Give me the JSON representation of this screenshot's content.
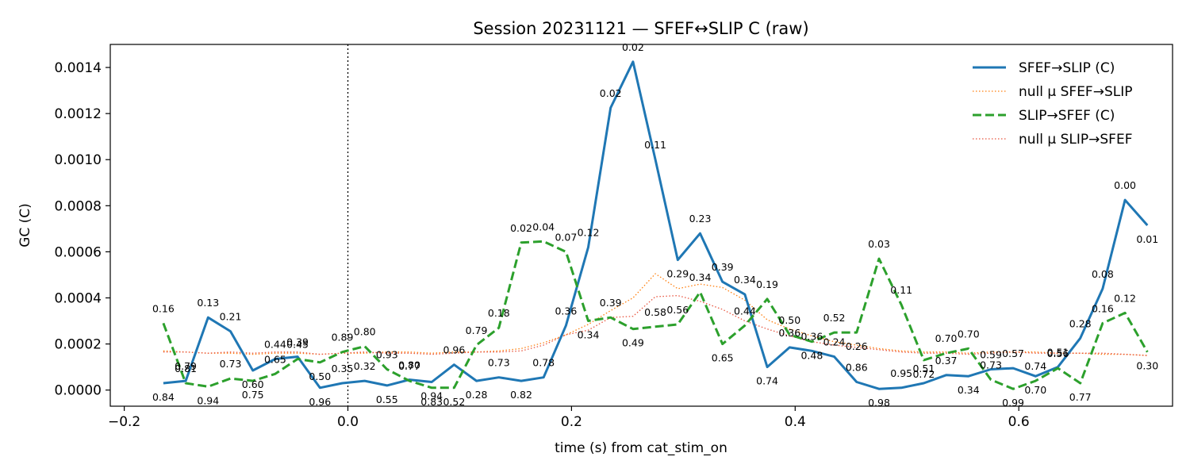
{
  "chart_data": {
    "type": "line",
    "title": "Session 20231121 — SFEF↔SLIP C (raw)",
    "xlabel": "time (s) from cat_stim_on",
    "ylabel": "GC (C)",
    "xlim": [
      -0.2125,
      0.7375
    ],
    "ylim": [
      -7e-05,
      0.0015
    ],
    "x_ticks": [
      -0.2,
      0.0,
      0.2,
      0.4,
      0.6
    ],
    "x_tick_labels": [
      "−0.2",
      "0.0",
      "0.2",
      "0.4",
      "0.6"
    ],
    "y_ticks": [
      0.0,
      0.0002,
      0.0004,
      0.0006,
      0.0008,
      0.001,
      0.0012,
      0.0014
    ],
    "y_tick_labels": [
      "0.0000",
      "0.0002",
      "0.0004",
      "0.0006",
      "0.0008",
      "0.0010",
      "0.0012",
      "0.0014"
    ],
    "grid": false,
    "legend_position": "top-right",
    "vline_x": 0.0,
    "x": [
      -0.165,
      -0.145,
      -0.125,
      -0.105,
      -0.085,
      -0.065,
      -0.045,
      -0.025,
      -0.005,
      0.015,
      0.035,
      0.055,
      0.075,
      0.095,
      0.115,
      0.135,
      0.155,
      0.175,
      0.195,
      0.215,
      0.235,
      0.255,
      0.275,
      0.295,
      0.315,
      0.335,
      0.355,
      0.375,
      0.395,
      0.415,
      0.435,
      0.455,
      0.475,
      0.495,
      0.515,
      0.535,
      0.555,
      0.575,
      0.595,
      0.615,
      0.635,
      0.655,
      0.675,
      0.695,
      0.715
    ],
    "series": [
      {
        "name": "SFEF→SLIP (C)",
        "color": "#1f77b4",
        "style": "solid",
        "values": [
          3e-05,
          4e-05,
          0.000315,
          0.000255,
          8.5e-05,
          0.000135,
          0.000145,
          1e-05,
          3e-05,
          4e-05,
          2e-05,
          4.5e-05,
          3.5e-05,
          0.00011,
          4e-05,
          5.5e-05,
          4e-05,
          5.5e-05,
          0.00028,
          0.00062,
          0.001225,
          0.001425,
          0.001,
          0.000565,
          0.00068,
          0.00047,
          0.000415,
          0.0001,
          0.000185,
          0.00017,
          0.000145,
          3.5e-05,
          5e-06,
          1e-05,
          3e-05,
          6.5e-05,
          6e-05,
          9e-05,
          9.5e-05,
          6e-05,
          0.0001,
          0.000225,
          0.00044,
          0.000825,
          0.000715
        ],
        "labels": [
          "0.84",
          "0.79",
          "0.13",
          "0.21",
          "0.60",
          "0.44",
          "0.39",
          "0.96",
          "0.35",
          "0.32",
          "0.55",
          "0.80",
          "0.94",
          "0.96",
          "0.28",
          "0.73",
          "0.82",
          "0.78",
          "0.36",
          "0.12",
          "0.02",
          "0.02",
          "0.11",
          "0.29",
          "0.23",
          "0.39",
          "0.34",
          "0.74",
          "0.36",
          "0.36",
          "0.24",
          "0.86",
          "0.98",
          "0.95",
          "0.51",
          "0.37",
          "0.34",
          "0.59",
          "0.57",
          "0.70",
          "0.51",
          "0.28",
          "0.08",
          "0.00",
          "0.01"
        ]
      },
      {
        "name": "null μ SFEF→SLIP",
        "color": "#ff7f0e",
        "style": "dotted",
        "values": [
          0.00017,
          0.000165,
          0.00016,
          0.00016,
          0.000155,
          0.00016,
          0.00016,
          0.000155,
          0.00016,
          0.00016,
          0.000165,
          0.000165,
          0.00016,
          0.000165,
          0.000165,
          0.00017,
          0.00018,
          0.000205,
          0.00024,
          0.000285,
          0.000345,
          0.0004,
          0.000505,
          0.00044,
          0.00046,
          0.000445,
          0.00039,
          0.000305,
          0.000265,
          0.000235,
          0.00021,
          0.000195,
          0.00018,
          0.00017,
          0.000165,
          0.000165,
          0.00016,
          0.000165,
          0.000165,
          0.000165,
          0.00016,
          0.00016,
          0.000155,
          0.000155,
          0.00015
        ]
      },
      {
        "name": "SLIP→SFEF (C)",
        "color": "#2ca02c",
        "style": "dashed",
        "values": [
          0.00029,
          3e-05,
          1.5e-05,
          5e-05,
          4e-05,
          7e-05,
          0.000135,
          0.00012,
          0.000165,
          0.00019,
          9e-05,
          4e-05,
          1e-05,
          1e-05,
          0.000195,
          0.00027,
          0.00064,
          0.000645,
          0.0006,
          0.0003,
          0.000315,
          0.000265,
          0.000275,
          0.000285,
          0.000425,
          0.0002,
          0.00028,
          0.000395,
          0.00024,
          0.00021,
          0.00025,
          0.00025,
          0.00057,
          0.00037,
          0.00013,
          0.00016,
          0.00018,
          4.5e-05,
          5e-06,
          4e-05,
          9.5e-05,
          3e-05,
          0.00029,
          0.000335,
          0.000165
        ],
        "labels": [
          "0.16",
          "0.81",
          "0.94",
          "0.73",
          "0.75",
          "0.65",
          "0.45",
          "0.50",
          "0.89",
          "0.80",
          "0.93",
          "0.77",
          "0.83",
          "0.52",
          "0.79",
          "0.18",
          "0.02",
          "0.04",
          "0.07",
          "0.34",
          "0.39",
          "0.49",
          "0.58",
          "0.56",
          "0.34",
          "0.65",
          "0.44",
          "0.19",
          "0.50",
          "0.48",
          "0.52",
          "0.26",
          "0.03",
          "0.11",
          "0.72",
          "0.70",
          "0.70",
          "0.73",
          "0.99",
          "0.74",
          "0.56",
          "0.77",
          "0.16",
          "0.12",
          "0.30"
        ]
      },
      {
        "name": "null μ SLIP→SFEF",
        "color": "#e8553f",
        "style": "dotted",
        "values": [
          0.000165,
          0.000165,
          0.00016,
          0.000165,
          0.00016,
          0.000165,
          0.000165,
          0.000155,
          0.00016,
          0.000165,
          0.00016,
          0.00016,
          0.000155,
          0.00016,
          0.000165,
          0.000165,
          0.00017,
          0.000195,
          0.00024,
          0.00026,
          0.000315,
          0.00032,
          0.000405,
          0.00041,
          0.000385,
          0.00035,
          0.0003,
          0.000265,
          0.000235,
          0.00021,
          0.000195,
          0.000185,
          0.000175,
          0.000165,
          0.00016,
          0.00016,
          0.000155,
          0.00016,
          0.000165,
          0.00016,
          0.00016,
          0.00016,
          0.00016,
          0.000155,
          0.00015
        ]
      }
    ]
  }
}
